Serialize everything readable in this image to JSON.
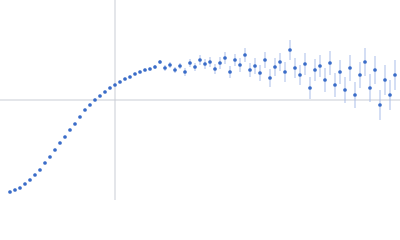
{
  "chart_data": {
    "type": "scatter",
    "x": [
      -105,
      -100,
      -95,
      -90,
      -85,
      -80,
      -75,
      -70,
      -65,
      -60,
      -55,
      -50,
      -45,
      -40,
      -35,
      -30,
      -25,
      -20,
      -15,
      -10,
      -5,
      0,
      5,
      10,
      15,
      20,
      25,
      30,
      35,
      40,
      45,
      50,
      55,
      60,
      65,
      70,
      75,
      80,
      85,
      90,
      95,
      100,
      105,
      110,
      115,
      120,
      125,
      130,
      135,
      140,
      145,
      150,
      155,
      160,
      165,
      170,
      175,
      180,
      185,
      190,
      195,
      200,
      205,
      210,
      215,
      220,
      225,
      230,
      235,
      240,
      245,
      250,
      255,
      260,
      265,
      270,
      275,
      280
    ],
    "series": [
      {
        "color": "#3a6cc8",
        "error_color": "#a9bde8",
        "values": [
          -92,
          -90,
          -88,
          -84,
          -80,
          -75,
          -70,
          -63,
          -57,
          -50,
          -43,
          -37,
          -30,
          -24,
          -17,
          -10,
          -5,
          0,
          4,
          8,
          12,
          15,
          18,
          21,
          23,
          26,
          28,
          30,
          31,
          33,
          38,
          32,
          35,
          30,
          34,
          28,
          37,
          33,
          40,
          36,
          38,
          31,
          37,
          42,
          28,
          40,
          35,
          45,
          30,
          34,
          27,
          40,
          22,
          33,
          38,
          28,
          50,
          32,
          25,
          36,
          12,
          30,
          34,
          20,
          37,
          15,
          28,
          10,
          32,
          5,
          25,
          38,
          12,
          30,
          -5,
          20,
          5,
          25
        ],
        "errors": [
          1,
          1,
          1,
          1,
          1,
          1,
          1,
          1,
          1,
          1,
          1,
          1,
          1,
          1,
          1,
          1,
          1,
          1,
          1,
          1,
          1,
          1,
          1,
          1,
          1,
          1,
          1,
          1,
          1,
          2,
          2,
          3,
          3,
          3,
          3,
          4,
          4,
          4,
          5,
          5,
          5,
          5,
          6,
          6,
          6,
          6,
          7,
          7,
          7,
          8,
          8,
          8,
          9,
          9,
          9,
          10,
          10,
          10,
          10,
          11,
          11,
          11,
          11,
          12,
          12,
          12,
          12,
          13,
          13,
          13,
          13,
          14,
          14,
          14,
          15,
          15,
          15,
          15
        ]
      }
    ],
    "xlim": [
      -115,
      285
    ],
    "ylim": [
      -100,
      100
    ],
    "zero_lines": true
  }
}
